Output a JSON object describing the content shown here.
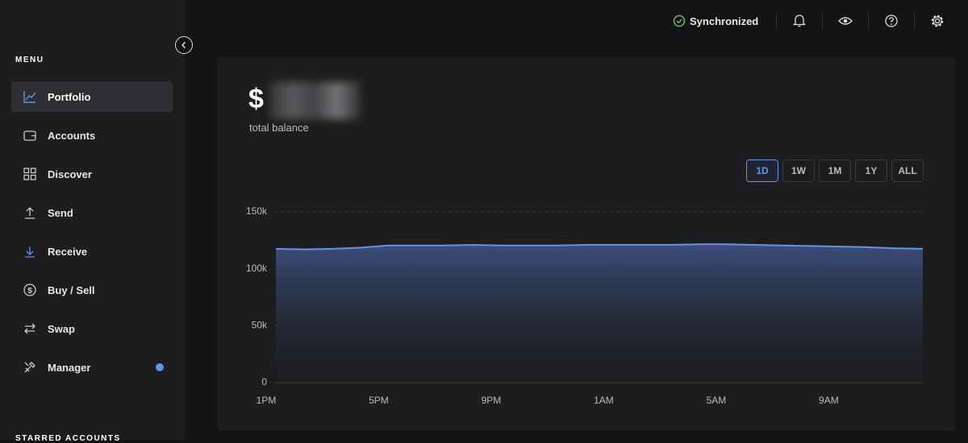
{
  "sidebar": {
    "menu_title": "MENU",
    "items": [
      "Portfolio",
      "Accounts",
      "Discover",
      "Send",
      "Receive",
      "Buy / Sell",
      "Swap",
      "Manager"
    ],
    "starred_title": "STARRED ACCOUNTS"
  },
  "header": {
    "status": "Synchronized"
  },
  "balance": {
    "currency": "$",
    "label": "total balance"
  },
  "range_buttons": [
    {
      "label": "1D",
      "selected": true
    },
    {
      "label": "1W",
      "selected": false
    },
    {
      "label": "1M",
      "selected": false
    },
    {
      "label": "1Y",
      "selected": false
    },
    {
      "label": "ALL",
      "selected": false
    }
  ],
  "chart_data": {
    "type": "area",
    "categories": [
      "1PM",
      null,
      null,
      null,
      "5PM",
      null,
      null,
      null,
      "9PM",
      null,
      null,
      null,
      "1AM",
      null,
      null,
      null,
      "5AM",
      null,
      null,
      null,
      "9AM",
      null,
      null,
      null
    ],
    "values": [
      117500,
      117000,
      117500,
      118500,
      120500,
      120500,
      120500,
      121000,
      120500,
      120500,
      120500,
      121000,
      121000,
      121000,
      121000,
      121500,
      121500,
      121000,
      120500,
      120000,
      119500,
      119000,
      118000,
      117500
    ],
    "color": "#6490f1",
    "ylim": [
      0,
      150000
    ],
    "yticks": [
      0,
      {
        "value": 50000,
        "label": "50k"
      },
      {
        "value": 100000,
        "label": "100k"
      },
      {
        "value": 150000,
        "label": "150k"
      }
    ],
    "grid": true
  }
}
